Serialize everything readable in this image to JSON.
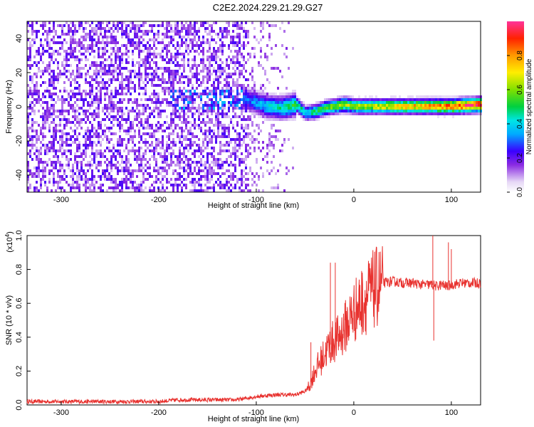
{
  "figure_title": "C2E2.2024.229.21.29.G27",
  "chart_data": [
    {
      "type": "heatmap",
      "title": "C2E2.2024.229.21.29.G27",
      "xlabel": "Height of straight line (km)",
      "ylabel": "Frequency (Hz)",
      "xlim": [
        -335,
        130
      ],
      "ylim": [
        -50,
        50
      ],
      "x_ticks": [
        -300,
        -200,
        -100,
        0,
        100
      ],
      "y_ticks": [
        -40,
        -20,
        0,
        20,
        40
      ],
      "colorbar": {
        "label": "Normalized spectral amplitude",
        "range": [
          0,
          1
        ],
        "ticks": [
          0.0,
          0.2,
          0.4,
          0.6,
          0.8
        ]
      },
      "ridge": {
        "description_points_x": [
          -110,
          -90,
          -75,
          -60,
          -50,
          -40,
          -30,
          -20,
          -10,
          0,
          20,
          40,
          60,
          80,
          100,
          130
        ],
        "description_points_y": [
          5,
          1,
          0,
          2,
          -3,
          -2,
          0,
          1,
          2,
          1,
          1,
          1,
          1,
          1,
          1,
          2
        ],
        "amplitude": [
          0.3,
          0.4,
          0.45,
          0.5,
          0.4,
          0.5,
          0.55,
          0.6,
          0.65,
          0.6,
          0.65,
          0.7,
          0.75,
          0.8,
          0.85,
          0.95
        ]
      },
      "noise_region": {
        "x_from": -335,
        "x_to": -60
      }
    },
    {
      "type": "line",
      "xlabel": "Height of straight line (km)",
      "ylabel": "SNR (10 * v/v)",
      "scale_label": "(x10",
      "scale_exponent": "4",
      "xlim": [
        -335,
        130
      ],
      "ylim": [
        0,
        1.0
      ],
      "x_ticks": [
        -300,
        -200,
        -100,
        0,
        100
      ],
      "y_ticks": [
        0.0,
        0.2,
        0.4,
        0.6,
        0.8,
        1.0
      ],
      "series": [
        {
          "color": "#e8322f",
          "anchor_x": [
            -335,
            -200,
            -180,
            -150,
            -120,
            -100,
            -80,
            -60,
            -50,
            -45,
            -40,
            -35,
            -30,
            -25,
            -20,
            -15,
            -10,
            -5,
            0,
            10,
            20,
            30,
            40,
            50,
            60,
            70,
            80,
            85,
            90,
            95,
            100,
            110,
            120,
            130
          ],
          "anchor_y": [
            0.02,
            0.02,
            0.03,
            0.03,
            0.03,
            0.05,
            0.06,
            0.06,
            0.08,
            0.12,
            0.2,
            0.25,
            0.3,
            0.35,
            0.38,
            0.4,
            0.45,
            0.5,
            0.55,
            0.62,
            0.68,
            0.72,
            0.73,
            0.72,
            0.72,
            0.71,
            0.71,
            0.7,
            0.71,
            0.7,
            0.71,
            0.72,
            0.72,
            0.72
          ],
          "spikes": [
            {
              "x": -24,
              "y": 0.84
            },
            {
              "x": -19,
              "y": 0.84
            },
            {
              "x": -44,
              "y": 0.37
            },
            {
              "x": 81,
              "y": 1.0
            },
            {
              "x": 97,
              "y": 0.96
            },
            {
              "x": 100,
              "y": 0.92
            },
            {
              "x": 82,
              "y": 0.38
            }
          ]
        }
      ]
    }
  ]
}
